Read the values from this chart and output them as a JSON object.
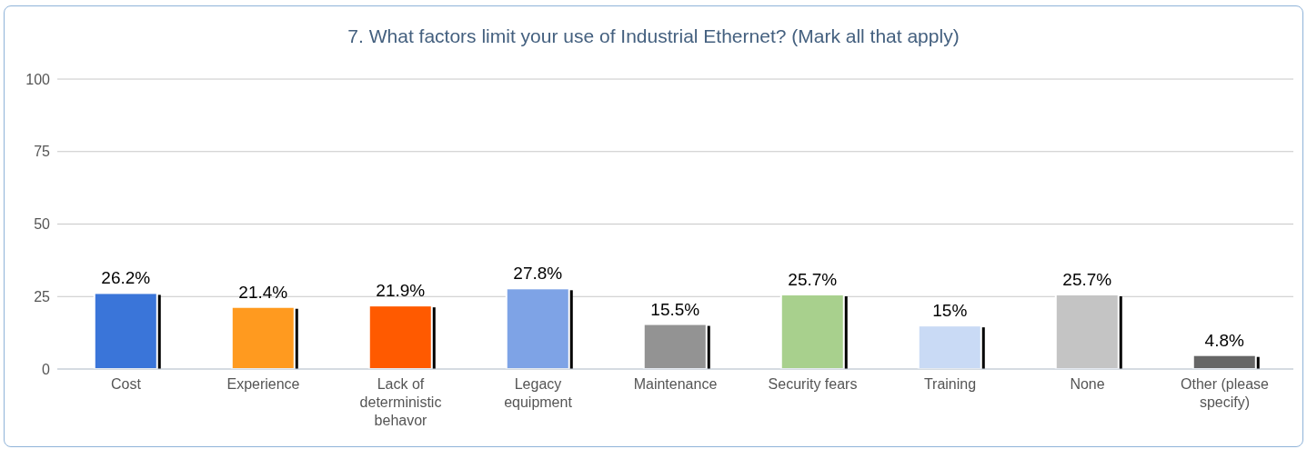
{
  "chart_data": {
    "type": "bar",
    "title": "7. What factors limit your use of Industrial Ethernet? (Mark all that apply)",
    "categories": [
      "Cost",
      "Experience",
      "Lack of deterministic behavor",
      "Legacy equipment",
      "Maintenance",
      "Security fears",
      "Training",
      "None",
      "Other (please specify)"
    ],
    "values": [
      26.2,
      21.4,
      21.9,
      27.8,
      15.5,
      25.7,
      15,
      25.7,
      4.8
    ],
    "value_labels": [
      "26.2%",
      "21.4%",
      "21.9%",
      "27.8%",
      "15.5%",
      "25.7%",
      "15%",
      "25.7%",
      "4.8%"
    ],
    "colors": [
      "#3a75d9",
      "#ff9a1f",
      "#ff5a00",
      "#7ea3e6",
      "#939393",
      "#a8d08d",
      "#c9daf5",
      "#c4c4c4",
      "#666666"
    ],
    "ylim": [
      0,
      100
    ],
    "yticks": [
      0,
      25,
      50,
      75,
      100
    ],
    "grid": "y"
  }
}
